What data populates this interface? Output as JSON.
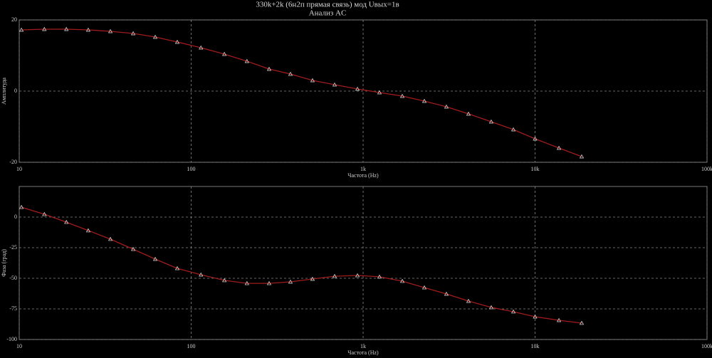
{
  "chart_data": [
    {
      "type": "line",
      "title": "330k+2k (6н2п прямая связь) мод Uвых=1в",
      "subtitle": "Анализ AC",
      "xlabel": "Частота (Hz)",
      "ylabel": "Амплитуда",
      "xscale": "log",
      "grid": true,
      "xlim": [
        10,
        100000
      ],
      "xticks": [
        10,
        100,
        {
          "value": 1000,
          "label": "1k"
        },
        {
          "value": 10000,
          "label": "10k"
        },
        {
          "value": 100000,
          "label": "100k"
        }
      ],
      "ylim": [
        -20,
        20
      ],
      "yticks": [
        -20,
        0,
        20
      ],
      "color": "#a01c1c",
      "x": [
        10.3,
        14,
        18.8,
        25.2,
        33.9,
        46,
        61.8,
        83,
        114,
        156,
        211,
        284,
        378,
        508,
        683,
        927,
        1245,
        1690,
        2270,
        3050,
        4100,
        5560,
        7480,
        10000,
        13770,
        18670
      ],
      "values": [
        17.2,
        17.4,
        17.4,
        17.2,
        16.8,
        16.2,
        15.2,
        13.8,
        12.2,
        10.4,
        8.4,
        6.2,
        4.8,
        3,
        1.8,
        0.6,
        -0.4,
        -1.4,
        -2.8,
        -4.4,
        -6.4,
        -8.6,
        -10.8,
        -13.4,
        -16,
        -18.4
      ]
    },
    {
      "type": "line",
      "xlabel": "Частота (Hz)",
      "ylabel": "Фаза (град)",
      "xscale": "log",
      "grid": true,
      "xlim": [
        10,
        100000
      ],
      "xticks": [
        10,
        100,
        {
          "value": 1000,
          "label": "1k"
        },
        {
          "value": 10000,
          "label": "10k"
        },
        {
          "value": 100000,
          "label": "100k"
        }
      ],
      "ylim": [
        -100,
        25
      ],
      "yticks": [
        -100,
        -75,
        -50,
        -25,
        0
      ],
      "color": "#a01c1c",
      "x": [
        10.3,
        14,
        18.8,
        25.2,
        33.9,
        46,
        61.8,
        83,
        114,
        156,
        211,
        284,
        378,
        508,
        683,
        927,
        1245,
        1690,
        2270,
        3050,
        4100,
        5560,
        7480,
        10000,
        13770,
        18670
      ],
      "values": [
        8.1,
        2.3,
        -4.1,
        -11,
        -18,
        -26.2,
        -34.3,
        -41.9,
        -47.1,
        -51.7,
        -54.1,
        -54.1,
        -52.9,
        -50.6,
        -48.3,
        -47.7,
        -48.8,
        -52.3,
        -57.6,
        -62.8,
        -68.6,
        -73.8,
        -77.3,
        -81.4,
        -84.3,
        -86.6
      ]
    }
  ]
}
